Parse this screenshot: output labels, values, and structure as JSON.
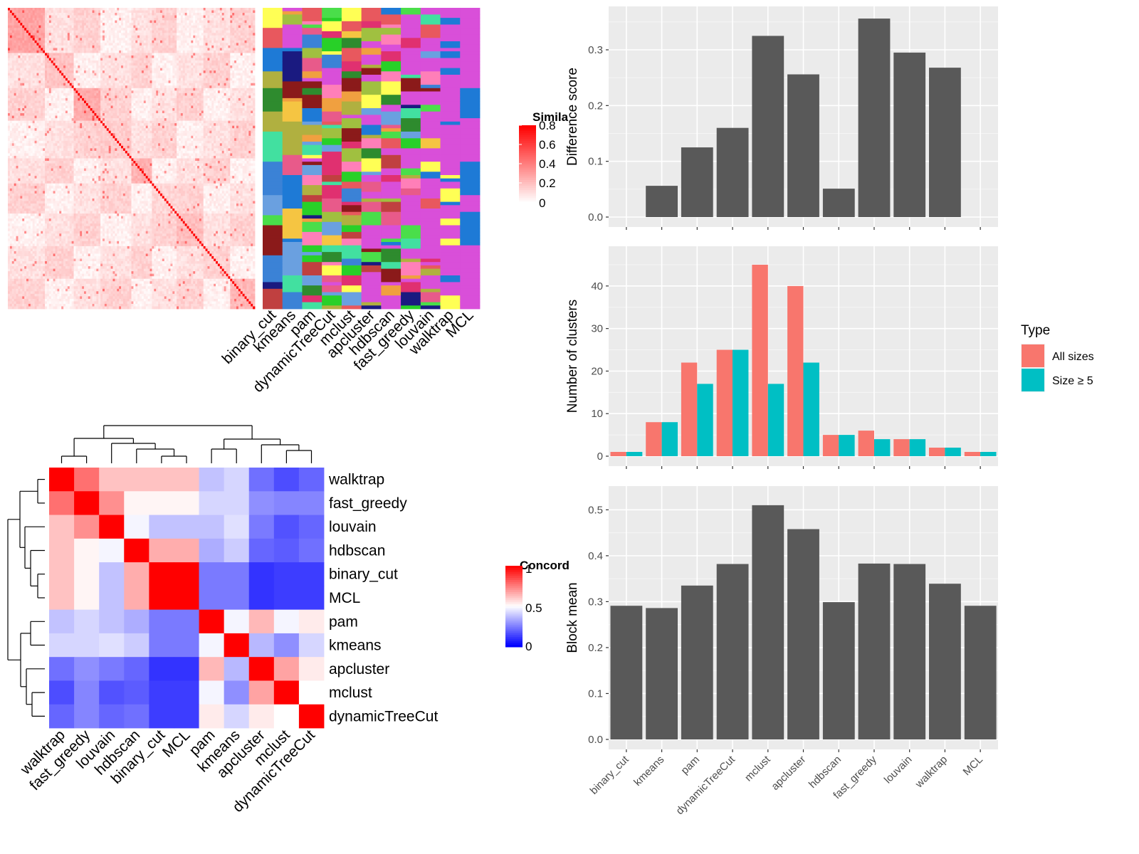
{
  "colors": {
    "panel_bg": "#ebebeb",
    "grid_major": "#ffffff",
    "bar_fill": "#595959",
    "series_all": "#f8766d",
    "series_size5": "#00bfc4",
    "sim_high": "#ff0000",
    "sim_low": "#ffffff",
    "conc_high": "#ff0000",
    "conc_mid": "#ffffff",
    "conc_low": "#0000ff"
  },
  "similarity_legend": {
    "title": "Simila",
    "ticks": [
      "0.8",
      "0.6",
      "0.4",
      "0.2",
      "0"
    ]
  },
  "concordance_legend": {
    "title": "Concord",
    "ticks": [
      "1",
      "0.5",
      "0"
    ]
  },
  "membership_columns": [
    "binary_cut",
    "kmeans",
    "pam",
    "dynamicTreeCut",
    "mclust",
    "apcluster",
    "hdbscan",
    "fast_greedy",
    "louvain",
    "walktrap",
    "MCL"
  ],
  "chart_data": [
    {
      "type": "heatmap",
      "name_hint": "consensus-similarity",
      "legend_title": "Simila",
      "value_range": [
        0,
        0.8
      ]
    },
    {
      "type": "heatmap",
      "name_hint": "cluster-membership",
      "columns": [
        "binary_cut",
        "kmeans",
        "pam",
        "dynamicTreeCut",
        "mclust",
        "apcluster",
        "hdbscan",
        "fast_greedy",
        "louvain",
        "walktrap",
        "MCL"
      ]
    },
    {
      "type": "heatmap",
      "name_hint": "concordance",
      "legend_title": "Concord",
      "value_range": [
        0,
        1
      ],
      "rows": [
        "walktrap",
        "fast_greedy",
        "louvain",
        "hdbscan",
        "binary_cut",
        "MCL",
        "pam",
        "kmeans",
        "apcluster",
        "mclust",
        "dynamicTreeCut"
      ],
      "columns": [
        "walktrap",
        "fast_greedy",
        "louvain",
        "hdbscan",
        "binary_cut",
        "MCL",
        "pam",
        "kmeans",
        "apcluster",
        "mclust",
        "dynamicTreeCut"
      ],
      "values": [
        [
          1.0,
          0.78,
          0.62,
          0.62,
          0.62,
          0.62,
          0.38,
          0.42,
          0.22,
          0.15,
          0.2
        ],
        [
          0.78,
          1.0,
          0.72,
          0.52,
          0.52,
          0.52,
          0.42,
          0.42,
          0.28,
          0.26,
          0.26
        ],
        [
          0.62,
          0.72,
          1.0,
          0.48,
          0.38,
          0.38,
          0.38,
          0.44,
          0.24,
          0.16,
          0.2
        ],
        [
          0.62,
          0.52,
          0.48,
          1.0,
          0.66,
          0.66,
          0.34,
          0.4,
          0.2,
          0.18,
          0.22
        ],
        [
          0.62,
          0.52,
          0.38,
          0.66,
          1.0,
          1.0,
          0.24,
          0.24,
          0.1,
          0.12,
          0.12
        ],
        [
          0.62,
          0.52,
          0.38,
          0.66,
          1.0,
          1.0,
          0.24,
          0.24,
          0.1,
          0.12,
          0.12
        ],
        [
          0.38,
          0.42,
          0.38,
          0.34,
          0.24,
          0.24,
          1.0,
          0.48,
          0.64,
          0.48,
          0.54
        ],
        [
          0.42,
          0.42,
          0.44,
          0.4,
          0.24,
          0.24,
          0.48,
          1.0,
          0.36,
          0.28,
          0.42
        ],
        [
          0.22,
          0.28,
          0.24,
          0.2,
          0.1,
          0.1,
          0.64,
          0.36,
          1.0,
          0.68,
          0.54
        ],
        [
          0.15,
          0.26,
          0.16,
          0.18,
          0.12,
          0.12,
          0.48,
          0.28,
          0.68,
          1.0,
          0.5
        ],
        [
          0.2,
          0.26,
          0.2,
          0.22,
          0.12,
          0.12,
          0.54,
          0.42,
          0.54,
          0.5,
          1.0
        ]
      ]
    },
    {
      "type": "bar",
      "categories": [
        "binary_cut",
        "kmeans",
        "pam",
        "dynamicTreeCut",
        "mclust",
        "apcluster",
        "hdbscan",
        "fast_greedy",
        "louvain",
        "walktrap",
        "MCL"
      ],
      "values": [
        0,
        0.056,
        0.125,
        0.16,
        0.325,
        0.256,
        0.051,
        0.356,
        0.295,
        0.268,
        0
      ],
      "ylabel": "Difference score",
      "ylim": [
        0,
        0.36
      ],
      "yticks": [
        "0.0",
        "0.1",
        "0.2",
        "0.3"
      ],
      "grid": true
    },
    {
      "type": "bar",
      "categories": [
        "binary_cut",
        "kmeans",
        "pam",
        "dynamicTreeCut",
        "mclust",
        "apcluster",
        "hdbscan",
        "fast_greedy",
        "louvain",
        "walktrap",
        "MCL"
      ],
      "series": [
        {
          "name": "All sizes",
          "values": [
            1,
            8,
            22,
            25,
            45,
            40,
            5,
            6,
            4,
            2,
            1
          ]
        },
        {
          "name": "Size ≥ 5",
          "values": [
            1,
            8,
            17,
            25,
            17,
            22,
            5,
            4,
            4,
            2,
            1
          ]
        }
      ],
      "ylabel": "Number of clusters",
      "ylim": [
        0,
        47
      ],
      "yticks": [
        "0",
        "10",
        "20",
        "30",
        "40"
      ],
      "legend_title": "Type",
      "legend_position": "right",
      "grid": true
    },
    {
      "type": "bar",
      "categories": [
        "binary_cut",
        "kmeans",
        "pam",
        "dynamicTreeCut",
        "mclust",
        "apcluster",
        "hdbscan",
        "fast_greedy",
        "louvain",
        "walktrap",
        "MCL"
      ],
      "values": [
        0.291,
        0.286,
        0.335,
        0.382,
        0.51,
        0.458,
        0.299,
        0.383,
        0.382,
        0.339,
        0.291
      ],
      "ylabel": "Block mean",
      "ylim": [
        0,
        0.53
      ],
      "yticks": [
        "0.0",
        "0.1",
        "0.2",
        "0.3",
        "0.4",
        "0.5"
      ],
      "grid": true
    }
  ]
}
